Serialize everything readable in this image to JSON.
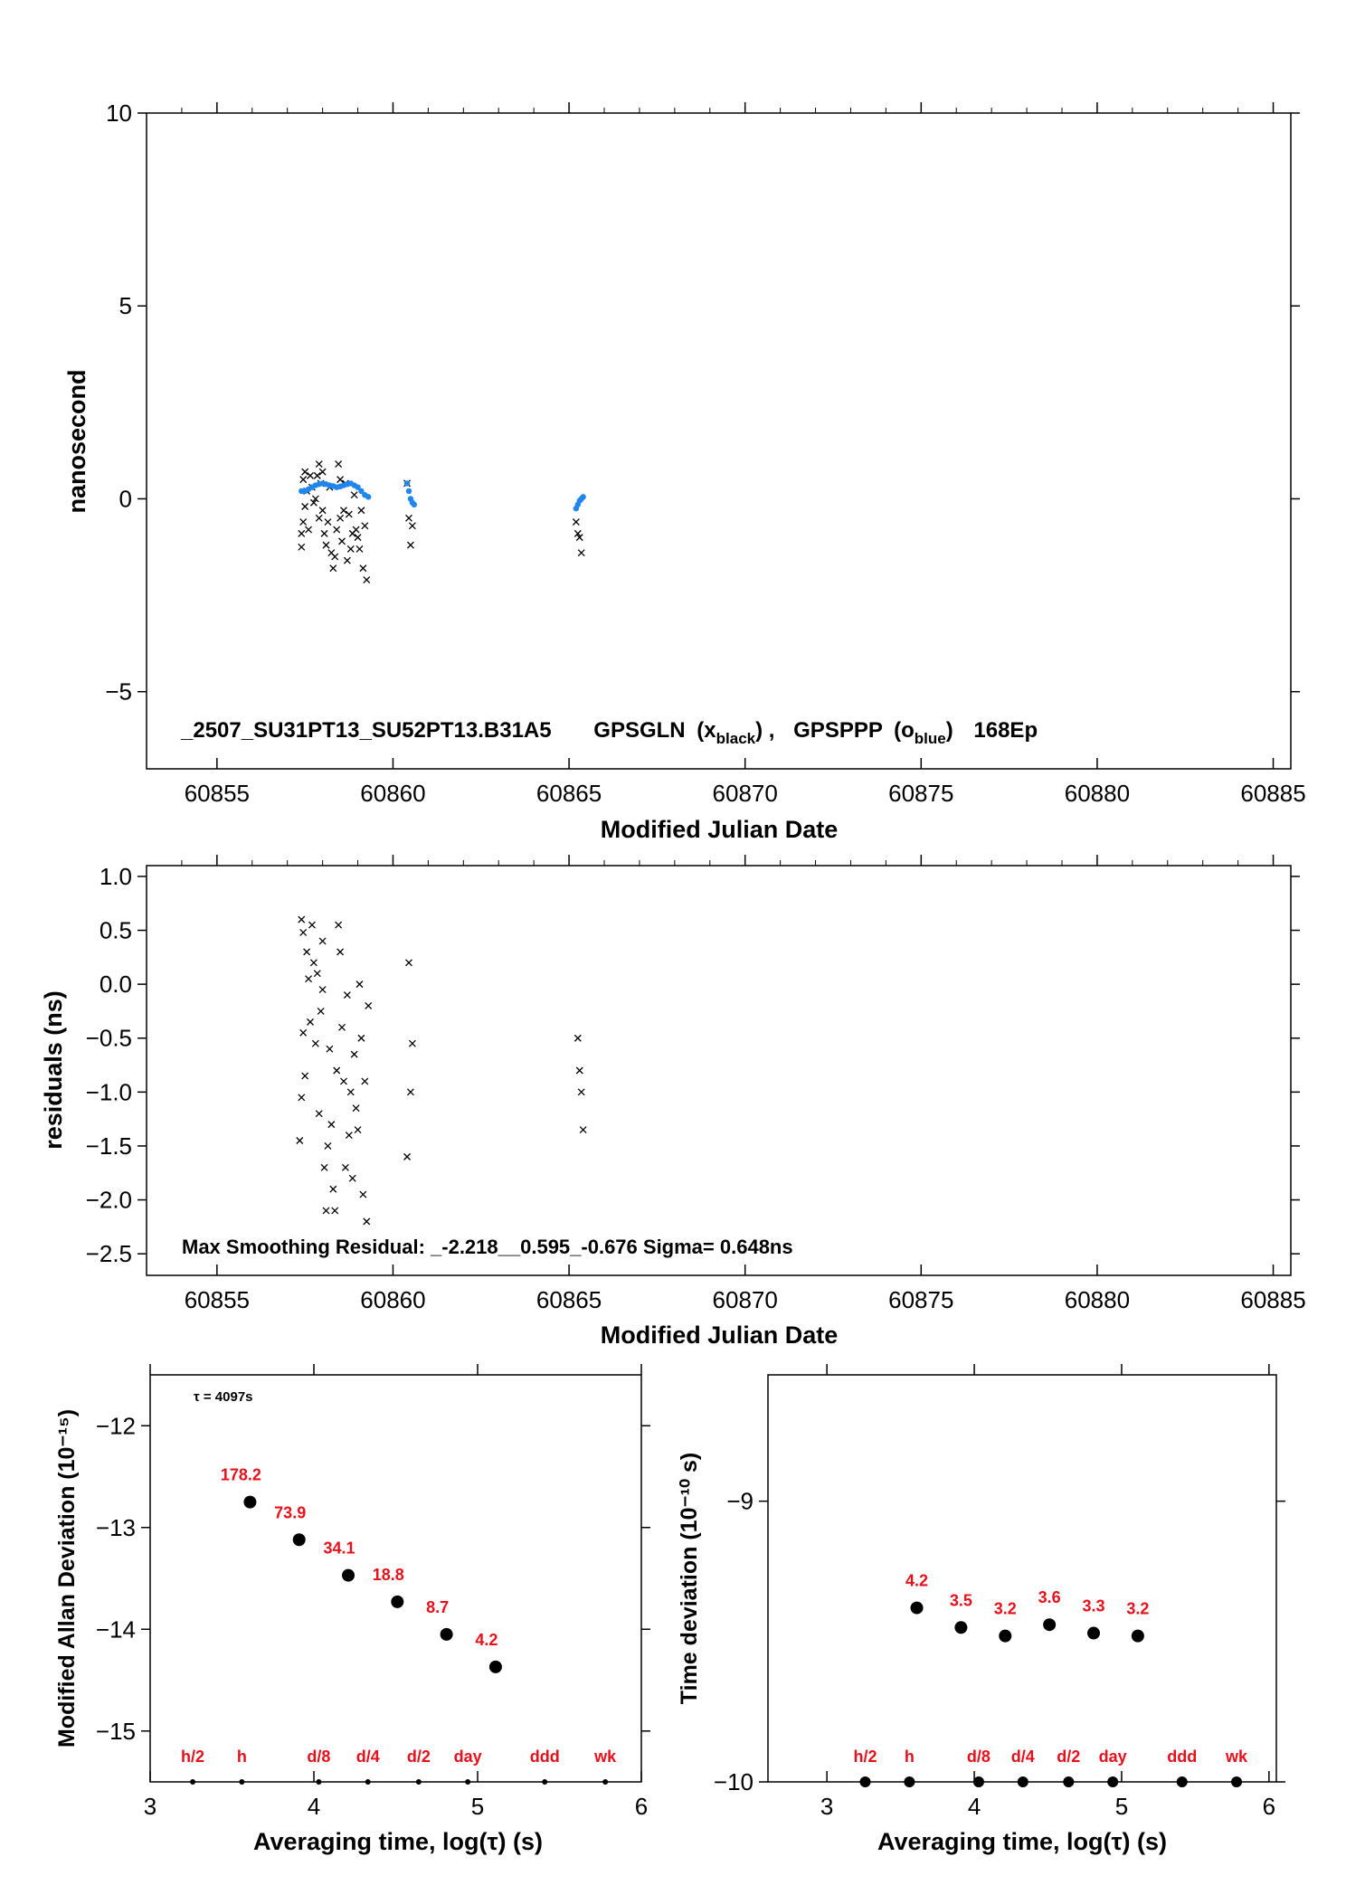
{
  "chart_data": [
    {
      "type": "scatter",
      "xlabel": "Modified Julian Date",
      "ylabel": "nanosecond",
      "xlim": [
        60853,
        60885.5
      ],
      "ylim": [
        -7,
        10
      ],
      "xticks": [
        "60855",
        "60860",
        "60865",
        "60870",
        "60875",
        "60880",
        "60885"
      ],
      "yticks": [
        "10",
        "5",
        "0",
        "−5"
      ],
      "annotation": {
        "id": "_2507_SU31PT13_SU52PT13.B31A5",
        "series_a": "GPSGLN",
        "series_a_mark": "x",
        "series_a_sub": "black",
        "series_b": "GPSPPP",
        "series_b_mark": "o",
        "series_b_sub": "blue",
        "epochs": "168Ep"
      },
      "series": [
        {
          "color": "#000000",
          "marker": "x",
          "x": [
            60857.4,
            60857.4,
            60857.45,
            60857.45,
            60857.5,
            60857.5,
            60857.55,
            60857.6,
            60857.65,
            60857.7,
            60857.75,
            60857.8,
            60857.85,
            60857.9,
            60857.9,
            60857.95,
            60858.0,
            60858.0,
            60858.05,
            60858.1,
            60858.15,
            60858.2,
            60858.25,
            60858.3,
            60858.35,
            60858.4,
            60858.45,
            60858.5,
            60858.5,
            60858.55,
            60858.6,
            60858.65,
            60858.7,
            60858.75,
            60858.8,
            60858.85,
            60858.9,
            60858.95,
            60859.0,
            60859.05,
            60859.1,
            60859.15,
            60859.2,
            60859.25,
            60860.4,
            60860.45,
            60860.5,
            60860.55,
            60865.2,
            60865.25,
            60865.3,
            60865.35
          ],
          "y": [
            -1.25,
            -0.9,
            -0.6,
            0.5,
            0.7,
            -0.2,
            0.2,
            -0.8,
            0.6,
            0.3,
            -0.1,
            0.0,
            0.6,
            0.9,
            -0.5,
            0.4,
            0.7,
            -0.3,
            -0.9,
            -1.2,
            -0.6,
            0.3,
            -1.4,
            -1.8,
            -1.5,
            -0.8,
            0.9,
            0.5,
            -0.5,
            -1.1,
            -0.3,
            0.4,
            -1.6,
            -0.4,
            -1.3,
            -0.9,
            0.1,
            -0.8,
            -1.0,
            -1.3,
            -0.3,
            -1.8,
            -0.7,
            -2.1,
            0.4,
            -0.5,
            -1.2,
            -0.7,
            -0.6,
            -0.9,
            -1.0,
            -1.4
          ]
        },
        {
          "color": "#1f86ee",
          "marker": "o",
          "x": [
            60857.4,
            60857.5,
            60857.6,
            60857.7,
            60857.8,
            60857.9,
            60858.0,
            60858.1,
            60858.2,
            60858.3,
            60858.4,
            60858.5,
            60858.6,
            60858.7,
            60858.8,
            60858.9,
            60859.0,
            60859.1,
            60859.2,
            60859.3,
            60860.4,
            60860.45,
            60860.5,
            60860.55,
            60860.6,
            60865.2,
            60865.25,
            60865.3,
            60865.35,
            60865.4
          ],
          "y": [
            0.2,
            0.2,
            0.25,
            0.3,
            0.35,
            0.38,
            0.4,
            0.38,
            0.35,
            0.33,
            0.3,
            0.32,
            0.35,
            0.38,
            0.4,
            0.35,
            0.3,
            0.2,
            0.1,
            0.05,
            0.4,
            0.2,
            0.0,
            -0.1,
            -0.15,
            -0.25,
            -0.15,
            -0.05,
            0.0,
            0.05
          ]
        }
      ]
    },
    {
      "type": "scatter",
      "xlabel": "Modified Julian Date",
      "ylabel": "residuals (ns)",
      "xlim": [
        60853,
        60885.5
      ],
      "ylim": [
        -2.7,
        1.1
      ],
      "xticks": [
        "60855",
        "60860",
        "60865",
        "60870",
        "60875",
        "60880",
        "60885"
      ],
      "yticks": [
        "1.0",
        "0.5",
        "0.0",
        "−0.5",
        "−1.0",
        "−1.5",
        "−2.0",
        "−2.5"
      ],
      "annotation": "Max Smoothing Residual: _-2.218__0.595_-0.676  Sigma= 0.648ns",
      "series": [
        {
          "color": "#000000",
          "marker": "x",
          "x": [
            60857.35,
            60857.4,
            60857.4,
            60857.45,
            60857.45,
            60857.5,
            60857.55,
            60857.6,
            60857.65,
            60857.7,
            60857.75,
            60857.8,
            60857.85,
            60857.9,
            60857.95,
            60858.0,
            60858.0,
            60858.05,
            60858.1,
            60858.15,
            60858.2,
            60858.25,
            60858.3,
            60858.35,
            60858.4,
            60858.45,
            60858.5,
            60858.55,
            60858.6,
            60858.65,
            60858.7,
            60858.75,
            60858.8,
            60858.85,
            60858.9,
            60858.95,
            60859.0,
            60859.05,
            60859.1,
            60859.15,
            60859.2,
            60859.25,
            60859.3,
            60860.4,
            60860.45,
            60860.5,
            60860.55,
            60865.25,
            60865.3,
            60865.35,
            60865.4
          ],
          "y": [
            -1.45,
            -1.05,
            0.6,
            -0.45,
            0.48,
            -0.85,
            0.3,
            0.05,
            -0.35,
            0.55,
            0.2,
            -0.55,
            0.1,
            -1.2,
            -0.25,
            -0.05,
            0.4,
            -1.7,
            -2.1,
            -1.5,
            -0.6,
            -1.3,
            -1.9,
            -2.1,
            -0.8,
            0.55,
            0.3,
            -0.4,
            -0.9,
            -1.7,
            -0.1,
            -1.4,
            -1.0,
            -1.8,
            -0.65,
            -1.15,
            -1.35,
            0.0,
            -0.5,
            -1.95,
            -0.9,
            -2.2,
            -0.2,
            -1.6,
            0.2,
            -1.0,
            -0.55,
            -0.5,
            -0.8,
            -1.0,
            -1.35
          ]
        }
      ]
    },
    {
      "type": "scatter",
      "xlabel": "Averaging time, log(τ) (s)",
      "ylabel": "Modified Allan Deviation (10⁻¹⁵)",
      "xlim": [
        3,
        6
      ],
      "ylim": [
        -15.5,
        -11.5
      ],
      "xticks": [
        "3",
        "4",
        "5",
        "6"
      ],
      "yticks": [
        "−12",
        "−13",
        "−14",
        "−15"
      ],
      "annotation": "τ = 4097s",
      "x": [
        3.61,
        3.91,
        4.21,
        4.51,
        4.81,
        5.11
      ],
      "y": [
        -12.75,
        -13.12,
        -13.47,
        -13.73,
        -14.05,
        -14.37
      ],
      "labels": [
        "178.2",
        "73.9",
        "34.1",
        "18.8",
        "8.7",
        "4.2"
      ],
      "markers": [
        {
          "label": "h/2",
          "x": 3.26
        },
        {
          "label": "h",
          "x": 3.56
        },
        {
          "label": "d/8",
          "x": 4.03
        },
        {
          "label": "d/4",
          "x": 4.33
        },
        {
          "label": "d/2",
          "x": 4.64
        },
        {
          "label": "day",
          "x": 4.94
        },
        {
          "label": "ddd",
          "x": 5.41
        },
        {
          "label": "wk",
          "x": 5.78
        }
      ]
    },
    {
      "type": "scatter",
      "xlabel": "Averaging time, log(τ) (s)",
      "ylabel": "Time deviation (10⁻¹⁰ s)",
      "xlim": [
        2.6,
        6.05
      ],
      "ylim": [
        -10,
        -8.55
      ],
      "xticks": [
        "3",
        "4",
        "5",
        "6"
      ],
      "yticks": [
        "−9",
        "−10"
      ],
      "x": [
        3.61,
        3.91,
        4.21,
        4.51,
        4.81,
        5.11
      ],
      "y": [
        -9.38,
        -9.45,
        -9.48,
        -9.44,
        -9.47,
        -9.48
      ],
      "labels": [
        "4.2",
        "3.5",
        "3.2",
        "3.6",
        "3.3",
        "3.2"
      ],
      "markers": [
        {
          "label": "h/2",
          "x": 3.26
        },
        {
          "label": "h",
          "x": 3.56
        },
        {
          "label": "d/8",
          "x": 4.03
        },
        {
          "label": "d/4",
          "x": 4.33
        },
        {
          "label": "d/2",
          "x": 4.64
        },
        {
          "label": "day",
          "x": 4.94
        },
        {
          "label": "ddd",
          "x": 5.41
        },
        {
          "label": "wk",
          "x": 5.78
        }
      ]
    }
  ],
  "colors": {
    "black": "#000000",
    "blue": "#1f86ee",
    "red": "#e8101a"
  }
}
